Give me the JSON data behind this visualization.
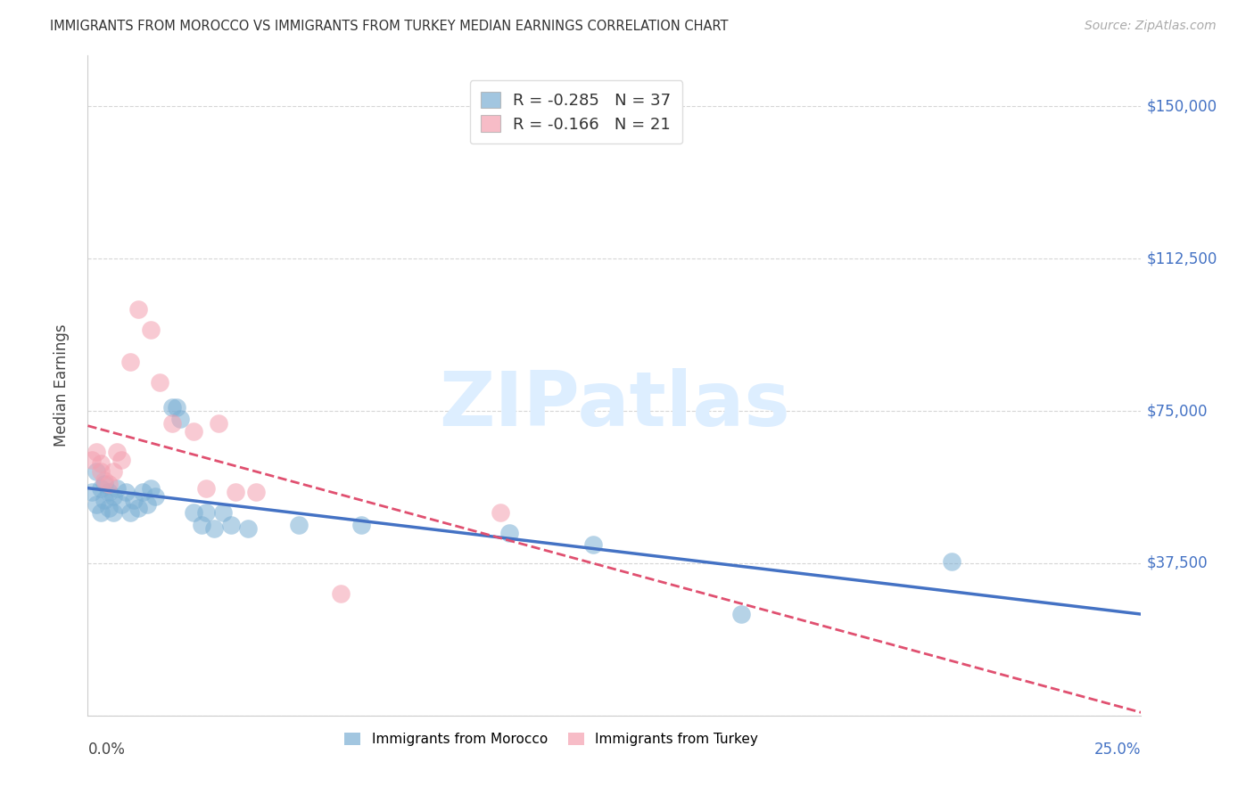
{
  "title": "IMMIGRANTS FROM MOROCCO VS IMMIGRANTS FROM TURKEY MEDIAN EARNINGS CORRELATION CHART",
  "source": "Source: ZipAtlas.com",
  "ylabel": "Median Earnings",
  "xlim": [
    0.0,
    0.25
  ],
  "ylim": [
    0,
    162500
  ],
  "ytick_vals": [
    0,
    37500,
    75000,
    112500,
    150000
  ],
  "ytick_labels": [
    "",
    "$37,500",
    "$75,000",
    "$112,500",
    "$150,000"
  ],
  "legend_label_morocco": "Immigrants from Morocco",
  "legend_label_turkey": "Immigrants from Turkey",
  "morocco_color": "#7bafd4",
  "turkey_color": "#f4a0b0",
  "morocco_line_color": "#4472c4",
  "turkey_line_color": "#e05070",
  "legend_r_morocco": "R = -0.285",
  "legend_n_morocco": "N = 37",
  "legend_r_turkey": "R = -0.166",
  "legend_n_turkey": "N = 21",
  "watermark": "ZIPatlas",
  "background_color": "#ffffff",
  "grid_color": "#cccccc",
  "morocco_x": [
    0.001,
    0.002,
    0.002,
    0.003,
    0.003,
    0.004,
    0.004,
    0.005,
    0.005,
    0.006,
    0.006,
    0.007,
    0.008,
    0.009,
    0.01,
    0.011,
    0.012,
    0.013,
    0.014,
    0.015,
    0.016,
    0.02,
    0.021,
    0.022,
    0.025,
    0.027,
    0.028,
    0.03,
    0.032,
    0.034,
    0.038,
    0.05,
    0.065,
    0.1,
    0.12,
    0.155,
    0.205
  ],
  "morocco_y": [
    55000,
    60000,
    52000,
    56000,
    50000,
    57000,
    53000,
    55000,
    51000,
    54000,
    50000,
    56000,
    52000,
    55000,
    50000,
    53000,
    51000,
    55000,
    52000,
    56000,
    54000,
    76000,
    76000,
    73000,
    50000,
    47000,
    50000,
    46000,
    50000,
    47000,
    46000,
    47000,
    47000,
    45000,
    42000,
    25000,
    38000
  ],
  "turkey_x": [
    0.001,
    0.002,
    0.003,
    0.003,
    0.004,
    0.005,
    0.006,
    0.007,
    0.008,
    0.01,
    0.012,
    0.015,
    0.017,
    0.02,
    0.025,
    0.028,
    0.031,
    0.035,
    0.04,
    0.06,
    0.098
  ],
  "turkey_y": [
    63000,
    65000,
    60000,
    62000,
    58000,
    57000,
    60000,
    65000,
    63000,
    87000,
    100000,
    95000,
    82000,
    72000,
    70000,
    56000,
    72000,
    55000,
    55000,
    30000,
    50000
  ]
}
